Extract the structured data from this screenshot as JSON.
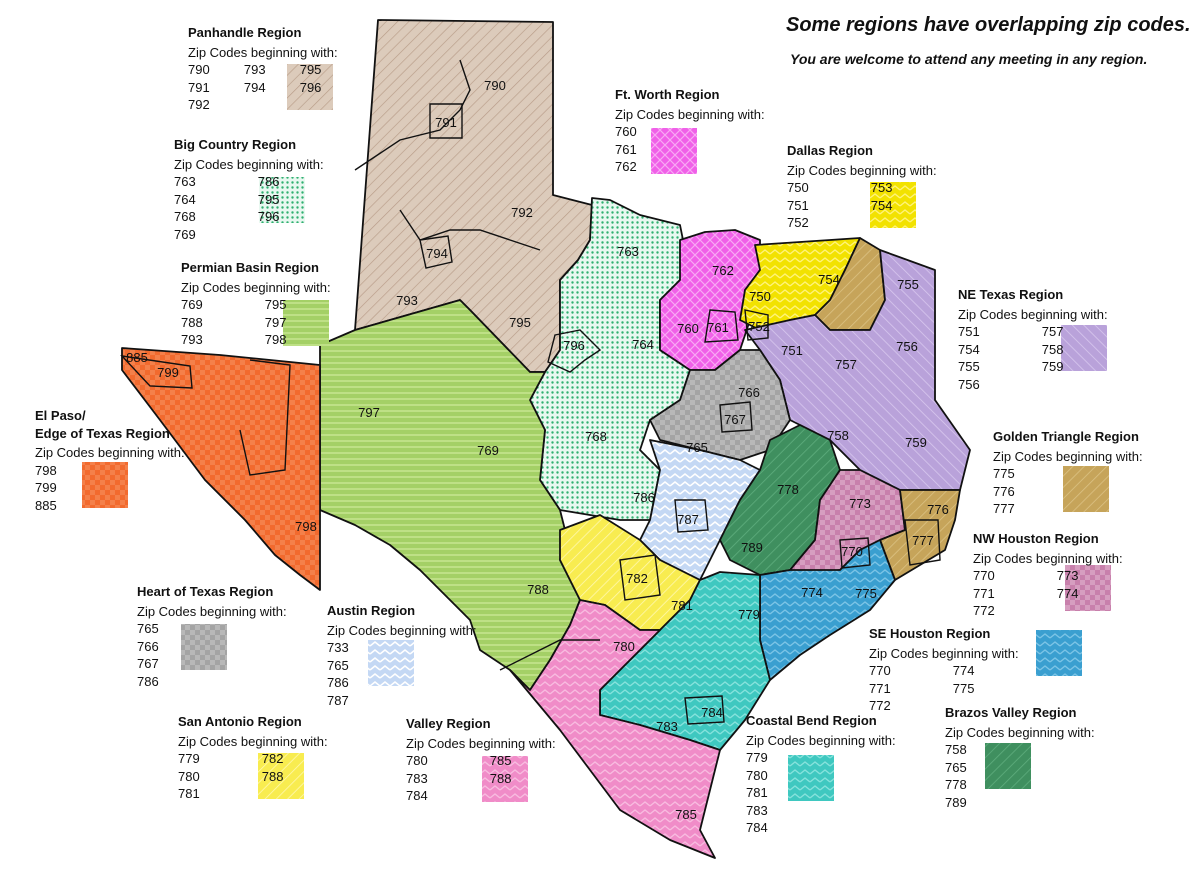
{
  "header": {
    "line1": "Some regions have overlapping zip codes.",
    "line2": "You are welcome to attend any meeting in any region."
  },
  "regions": [
    {
      "key": "panhandle",
      "name": "Panhandle Region",
      "sub": "Zip Codes beginning with:",
      "cols": [
        [
          "790",
          "791",
          "792"
        ],
        [
          "793",
          "794"
        ],
        [
          "795",
          "796"
        ]
      ],
      "color": "#d9c8b8",
      "pattern": "diag-stripes"
    },
    {
      "key": "bigcountry",
      "name": "Big Country Region",
      "sub": "Zip Codes beginning with:",
      "cols": [
        [
          "763",
          "764",
          "768",
          "769"
        ],
        [
          "786",
          "795",
          "796"
        ]
      ],
      "color": "#3fbf7f",
      "pattern": "dots"
    },
    {
      "key": "permian",
      "name": "Permian Basin Region",
      "sub": "Zip Codes beginning with:",
      "cols": [
        [
          "769",
          "788",
          "793"
        ],
        [
          "795",
          "797",
          "798"
        ]
      ],
      "color": "#9ccc5a",
      "pattern": "horizontal-stripes"
    },
    {
      "key": "elpaso",
      "name": "El Paso/\nEdge of Texas Region",
      "sub": "Zip Codes beginning with:",
      "cols": [
        [
          "798",
          "799",
          "885"
        ]
      ],
      "color": "#f26a2e",
      "pattern": "checker"
    },
    {
      "key": "ftworth",
      "name": "Ft. Worth Region",
      "sub": "Zip Codes beginning with:",
      "cols": [
        [
          "760",
          "761",
          "762"
        ]
      ],
      "color": "#f060e8",
      "pattern": "crosshatch"
    },
    {
      "key": "dallas",
      "name": "Dallas Region",
      "sub": "Zip Codes beginning with:",
      "cols": [
        [
          "750",
          "751",
          "752"
        ],
        [
          "753",
          "754"
        ]
      ],
      "color": "#f2e200",
      "pattern": "zigzag"
    },
    {
      "key": "netexas",
      "name": "NE Texas Region",
      "sub": "Zip Codes beginning with:",
      "cols": [
        [
          "751",
          "754",
          "755",
          "756"
        ],
        [
          "757",
          "758",
          "759"
        ]
      ],
      "color": "#b8a0d8",
      "pattern": "diag-stripes"
    },
    {
      "key": "golden",
      "name": "Golden Triangle Region",
      "sub": "Zip Codes beginning with:",
      "cols": [
        [
          "775",
          "776",
          "777"
        ]
      ],
      "color": "#c6a45a",
      "pattern": "diag-stripes"
    },
    {
      "key": "nwhouston",
      "name": "NW Houston Region",
      "sub": "Zip Codes beginning with:",
      "cols": [
        [
          "770",
          "771",
          "772"
        ],
        [
          "773",
          "774"
        ]
      ],
      "color": "#a8457a",
      "pattern": "checker"
    },
    {
      "key": "sehouston",
      "name": "SE Houston Region",
      "sub": "Zip Codes beginning with:",
      "cols": [
        [
          "770",
          "771",
          "772"
        ],
        [
          "774",
          "775"
        ]
      ],
      "color": "#3a9fd0",
      "pattern": "zigzag"
    },
    {
      "key": "brazos",
      "name": "Brazos Valley Region",
      "sub": "Zip Codes beginning with:",
      "cols": [
        [
          "758",
          "765",
          "778",
          "789"
        ]
      ],
      "color": "#3f8f5f",
      "pattern": "diag-stripes"
    },
    {
      "key": "coastal",
      "name": "Coastal Bend Region",
      "sub": "Zip Codes beginning with:",
      "cols": [
        [
          "779",
          "780",
          "781",
          "783",
          "784"
        ]
      ],
      "color": "#3fc8c0",
      "pattern": "zigzag"
    },
    {
      "key": "valley",
      "name": "Valley Region",
      "sub": "Zip Codes beginning with:",
      "cols": [
        [
          "780",
          "783",
          "784"
        ],
        [
          "785",
          "788"
        ]
      ],
      "color": "#f08cc8",
      "pattern": "zigzag"
    },
    {
      "key": "austin",
      "name": "Austin Region",
      "sub": "Zip Codes beginning with:",
      "cols": [
        [
          "733",
          "765",
          "786",
          "787"
        ]
      ],
      "color": "#b8d0f0",
      "pattern": "zigzag"
    },
    {
      "key": "sanantonio",
      "name": "San Antonio Region",
      "sub": "Zip Codes beginning with:",
      "cols": [
        [
          "779",
          "780",
          "781"
        ],
        [
          "782",
          "788"
        ]
      ],
      "color": "#f8ec50",
      "pattern": "diag-stripes"
    },
    {
      "key": "heart",
      "name": "Heart of Texas Region",
      "sub": "Zip Codes beginning with:",
      "cols": [
        [
          "765",
          "766",
          "767",
          "786"
        ]
      ],
      "color": "#a8a8a8",
      "pattern": "checker"
    }
  ],
  "map_labels": [
    "790",
    "791",
    "792",
    "793",
    "794",
    "795",
    "796",
    "797",
    "769",
    "768",
    "763",
    "764",
    "762",
    "760",
    "761",
    "750",
    "752",
    "754",
    "755",
    "751",
    "756",
    "757",
    "758",
    "759",
    "766",
    "767",
    "765",
    "786",
    "787",
    "778",
    "773",
    "776",
    "777",
    "770",
    "789",
    "774",
    "775",
    "782",
    "781",
    "788",
    "798",
    "799",
    "885",
    "779",
    "780",
    "783",
    "784",
    "785"
  ]
}
